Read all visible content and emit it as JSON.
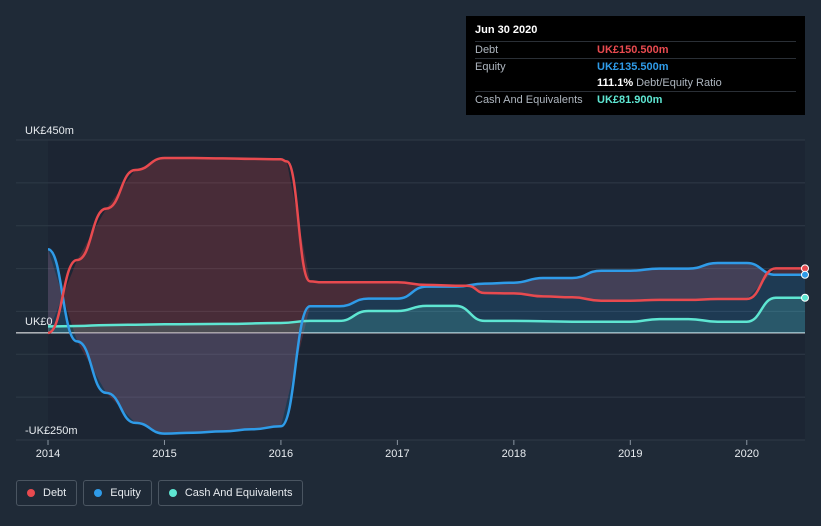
{
  "tooltip": {
    "date": "Jun 30 2020",
    "rows": [
      {
        "label": "Debt",
        "value": "UK£150.500m",
        "color": "#e84a4f"
      },
      {
        "label": "Equity",
        "value": "UK£135.500m",
        "color": "#2f9be8"
      },
      {
        "label": "",
        "value": "111.1%",
        "sub": "Debt/Equity Ratio",
        "color": "#ffffff"
      },
      {
        "label": "Cash And Equivalents",
        "value": "UK£81.900m",
        "color": "#5ee6d2"
      }
    ]
  },
  "legend": [
    {
      "label": "Debt",
      "color": "#e84a4f"
    },
    {
      "label": "Equity",
      "color": "#2f9be8"
    },
    {
      "label": "Cash And Equivalents",
      "color": "#5ee6d2"
    }
  ],
  "chart_data": {
    "type": "line",
    "y_labels": [
      "UK£450m",
      "UK£0",
      "-UK£250m"
    ],
    "ylim": [
      -250,
      450
    ],
    "xlim": [
      2014.0,
      2020.5
    ],
    "x_ticks": [
      2014,
      2015,
      2016,
      2017,
      2018,
      2019,
      2020
    ],
    "x_tick_labels": [
      "2014",
      "2015",
      "2016",
      "2017",
      "2018",
      "2019",
      "2020"
    ],
    "grid": true,
    "series": [
      {
        "name": "Debt",
        "color": "#e84a4f",
        "points": [
          [
            2014.0,
            0
          ],
          [
            2014.25,
            170
          ],
          [
            2014.5,
            290
          ],
          [
            2014.75,
            380
          ],
          [
            2015.0,
            408
          ],
          [
            2015.25,
            408
          ],
          [
            2015.5,
            407
          ],
          [
            2015.75,
            406
          ],
          [
            2016.0,
            405
          ],
          [
            2016.05,
            400
          ],
          [
            2016.25,
            120
          ],
          [
            2016.35,
            118
          ],
          [
            2016.75,
            118
          ],
          [
            2017.0,
            118
          ],
          [
            2017.25,
            112
          ],
          [
            2017.5,
            110
          ],
          [
            2017.6,
            110
          ],
          [
            2017.75,
            93
          ],
          [
            2018.0,
            92
          ],
          [
            2018.25,
            85
          ],
          [
            2018.5,
            83
          ],
          [
            2018.75,
            75
          ],
          [
            2019.0,
            75
          ],
          [
            2019.25,
            77
          ],
          [
            2019.5,
            77
          ],
          [
            2019.75,
            79
          ],
          [
            2020.0,
            79
          ],
          [
            2020.25,
            150.5
          ],
          [
            2020.5,
            150.5
          ]
        ]
      },
      {
        "name": "Equity",
        "color": "#2f9be8",
        "points": [
          [
            2014.0,
            195
          ],
          [
            2014.25,
            -20
          ],
          [
            2014.5,
            -140
          ],
          [
            2014.75,
            -210
          ],
          [
            2015.0,
            -235
          ],
          [
            2015.25,
            -233
          ],
          [
            2015.5,
            -230
          ],
          [
            2015.75,
            -225
          ],
          [
            2016.0,
            -218
          ],
          [
            2016.25,
            62
          ],
          [
            2016.5,
            62
          ],
          [
            2016.75,
            80
          ],
          [
            2017.0,
            80
          ],
          [
            2017.25,
            108
          ],
          [
            2017.5,
            108
          ],
          [
            2017.75,
            115
          ],
          [
            2018.0,
            117
          ],
          [
            2018.25,
            128
          ],
          [
            2018.5,
            128
          ],
          [
            2018.75,
            145
          ],
          [
            2019.0,
            145
          ],
          [
            2019.25,
            150
          ],
          [
            2019.5,
            150
          ],
          [
            2019.75,
            163
          ],
          [
            2020.0,
            163
          ],
          [
            2020.25,
            135.5
          ],
          [
            2020.5,
            135.5
          ]
        ]
      },
      {
        "name": "Cash And Equivalents",
        "color": "#5ee6d2",
        "points": [
          [
            2014.0,
            15
          ],
          [
            2014.25,
            16
          ],
          [
            2014.5,
            18
          ],
          [
            2014.75,
            19
          ],
          [
            2015.0,
            20
          ],
          [
            2015.5,
            21
          ],
          [
            2016.0,
            23
          ],
          [
            2016.25,
            28
          ],
          [
            2016.5,
            28
          ],
          [
            2016.75,
            51
          ],
          [
            2017.0,
            51
          ],
          [
            2017.25,
            63
          ],
          [
            2017.5,
            63
          ],
          [
            2017.75,
            28
          ],
          [
            2018.0,
            28
          ],
          [
            2018.5,
            26
          ],
          [
            2019.0,
            26
          ],
          [
            2019.25,
            32
          ],
          [
            2019.5,
            32
          ],
          [
            2019.75,
            26
          ],
          [
            2020.0,
            26
          ],
          [
            2020.25,
            81.9
          ],
          [
            2020.5,
            81.9
          ]
        ]
      }
    ]
  }
}
